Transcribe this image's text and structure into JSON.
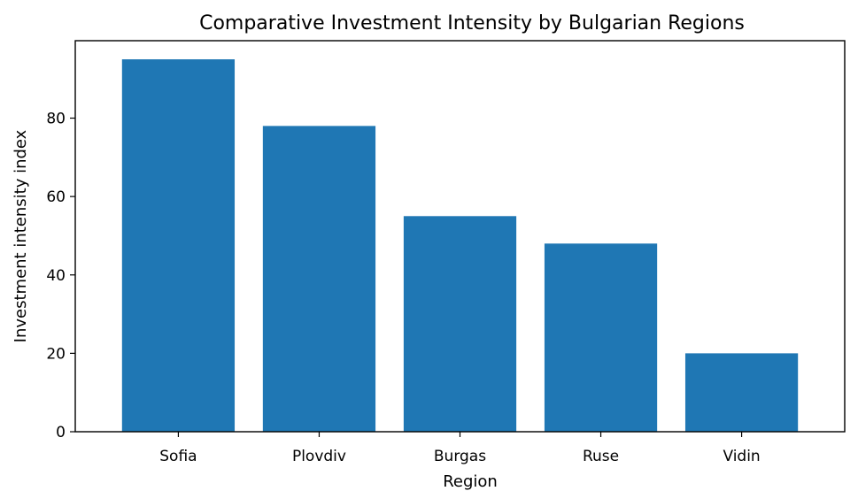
{
  "chart_data": {
    "type": "bar",
    "title": "Comparative Investment Intensity by Bulgarian Regions",
    "xlabel": "Region",
    "ylabel": "Investment intensity index",
    "categories": [
      "Sofia",
      "Plovdiv",
      "Burgas",
      "Ruse",
      "Vidin"
    ],
    "values": [
      95,
      78,
      55,
      48,
      20
    ],
    "ylim": [
      0,
      99.75
    ],
    "yticks": [
      0,
      20,
      40,
      60,
      80
    ],
    "grid": false,
    "bar_color": "#1f77b4"
  }
}
